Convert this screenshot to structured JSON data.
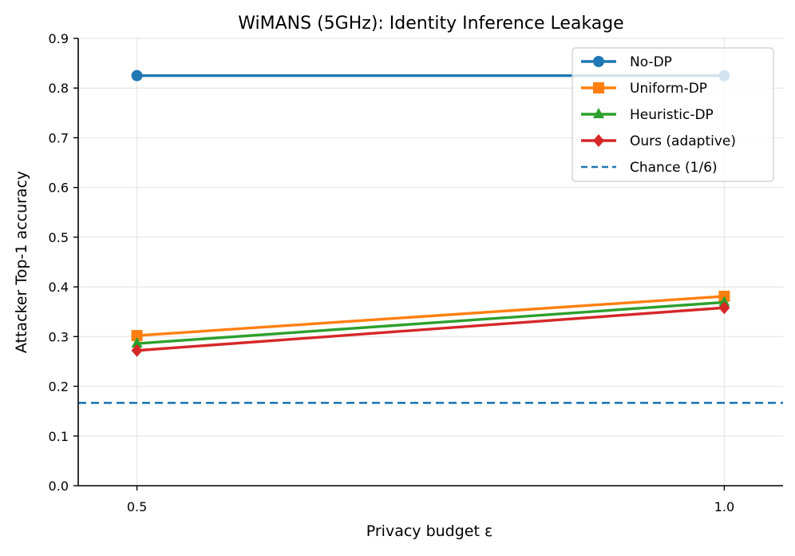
{
  "chart_data": {
    "type": "line",
    "title": "WiMANS (5GHz): Identity Inference Leakage",
    "xlabel": "Privacy budget ε",
    "ylabel": "Attacker Top-1 accuracy",
    "x": [
      0.5,
      1.0
    ],
    "x_tick_labels": [
      "0.5",
      "1.0"
    ],
    "xlim": [
      0.45,
      1.05
    ],
    "ylim": [
      0.0,
      0.9
    ],
    "y_ticks": [
      "0.0",
      "0.1",
      "0.2",
      "0.3",
      "0.4",
      "0.5",
      "0.6",
      "0.7",
      "0.8",
      "0.9"
    ],
    "grid": true,
    "legend_position": "top-right",
    "series": [
      {
        "name": "No-DP",
        "values": [
          0.825,
          0.825
        ],
        "color": "#1f77b4",
        "marker": "circle"
      },
      {
        "name": "Uniform-DP",
        "values": [
          0.302,
          0.381
        ],
        "color": "#ff7f0e",
        "marker": "square"
      },
      {
        "name": "Heuristic-DP",
        "values": [
          0.286,
          0.369
        ],
        "color": "#2ca02c",
        "marker": "triangle"
      },
      {
        "name": "Ours (adaptive)",
        "values": [
          0.272,
          0.358
        ],
        "color": "#d62728",
        "marker": "diamond"
      }
    ],
    "reference_lines": [
      {
        "name": "Chance (1/6)",
        "value": 0.1667,
        "color": "#1f77b4",
        "style": "dashed"
      }
    ]
  }
}
